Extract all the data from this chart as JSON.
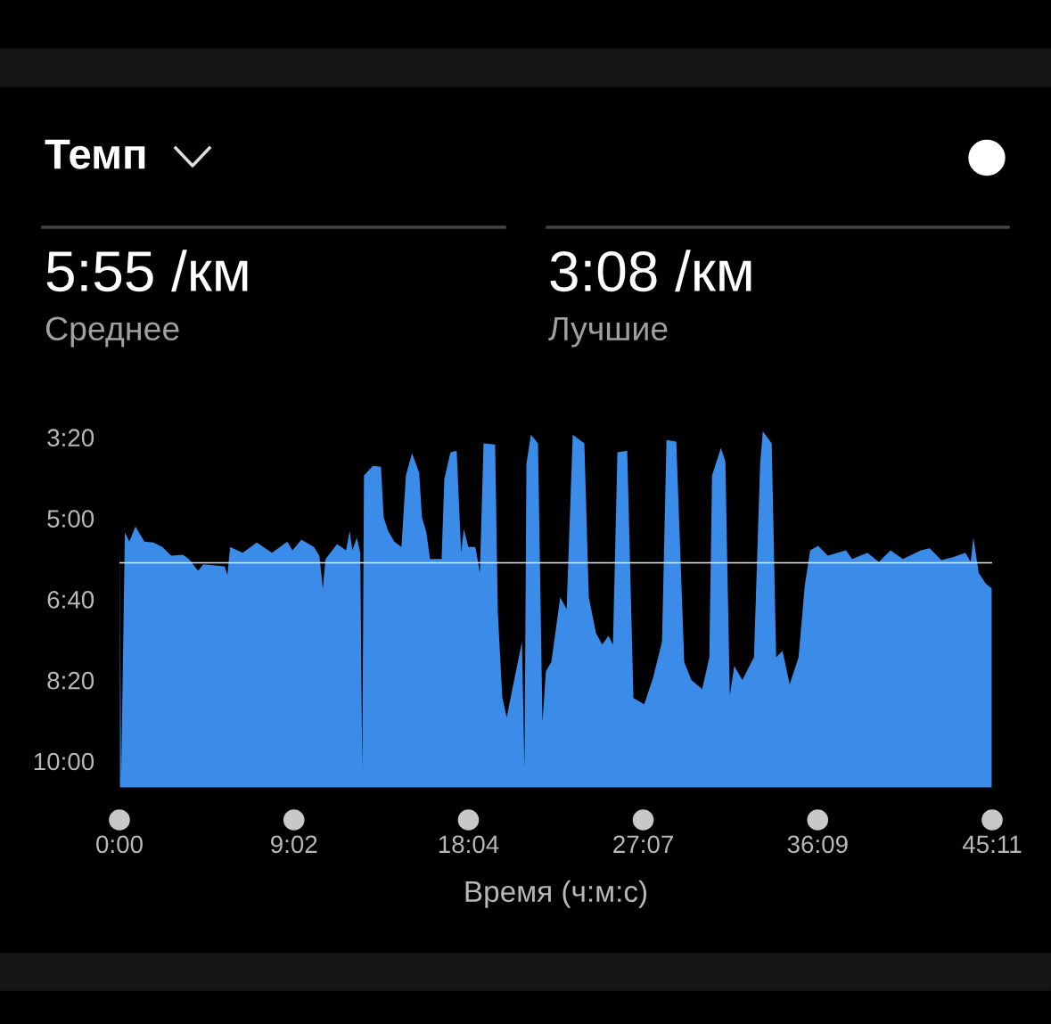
{
  "chart_data": {
    "type": "area",
    "title": "Темп",
    "xlabel": "Время (ч:м:с)",
    "annotations": [
      "5:55 /км",
      "Среднее",
      "3:08 /км",
      "Лучшие"
    ],
    "xlim": [
      0,
      45.183
    ],
    "ylim": [
      10.55,
      3.1
    ],
    "xticks": [
      {
        "value": 0,
        "label": "0:00"
      },
      {
        "value": 9.033,
        "label": "9:02"
      },
      {
        "value": 18.067,
        "label": "18:04"
      },
      {
        "value": 27.117,
        "label": "27:07"
      },
      {
        "value": 36.15,
        "label": "36:09"
      },
      {
        "value": 45.183,
        "label": "45:11"
      }
    ],
    "yticks": [
      {
        "value": 3.333,
        "label": "3:20"
      },
      {
        "value": 5,
        "label": "5:00"
      },
      {
        "value": 6.667,
        "label": "6:40"
      },
      {
        "value": 8.333,
        "label": "8:20"
      },
      {
        "value": 10,
        "label": "10:00"
      }
    ],
    "grid": false,
    "legend": false,
    "ref_lines": [
      {
        "axis": "y",
        "value": 5.917,
        "color": "#e8e8e8"
      }
    ],
    "x": [
      0,
      0.09,
      0.28,
      0.51,
      0.83,
      1.29,
      1.76,
      2.22,
      2.68,
      3.28,
      3.6,
      4.07,
      4.34,
      5.45,
      5.59,
      5.73,
      6.38,
      7.11,
      7.9,
      8.69,
      8.96,
      9.42,
      10.07,
      10.35,
      10.53,
      10.67,
      11.27,
      11.73,
      11.92,
      12.06,
      12.29,
      12.47,
      12.57,
      12.66,
      13.12,
      13.54,
      13.68,
      13.91,
      14.23,
      14.6,
      14.83,
      15.15,
      15.52,
      15.66,
      15.89,
      16.08,
      16.68,
      16.82,
      17.14,
      17.46,
      17.69,
      17.83,
      18.06,
      18.43,
      18.66,
      18.85,
      19.45,
      19.59,
      19.82,
      20.05,
      20.37,
      20.84,
      20.97,
      21.07,
      21.3,
      21.67,
      21.9,
      22.08,
      22.36,
      22.82,
      23.15,
      23.47,
      24.07,
      24.3,
      24.67,
      24.99,
      25.32,
      25.55,
      25.78,
      26.29,
      26.61,
      27.17,
      27.63,
      28.09,
      28.32,
      28.83,
      29.24,
      29.61,
      30.17,
      30.54,
      30.68,
      31.14,
      31.37,
      31.6,
      31.83,
      32.25,
      32.85,
      33.17,
      33.31,
      33.77,
      34.0,
      34.33,
      34.7,
      35.16,
      35.48,
      35.76,
      36.17,
      36.68,
      37.61,
      37.93,
      38.72,
      39.32,
      39.92,
      40.56,
      41.49,
      41.95,
      42.55,
      43.15,
      43.8,
      44.07,
      44.21,
      44.49,
      44.86,
      45.18
    ],
    "series": [
      {
        "color": "#3a8ce8",
        "values": [
          5.17,
          10.33,
          5.29,
          5.48,
          5.17,
          5.48,
          5.5,
          5.59,
          5.77,
          5.75,
          5.84,
          6.08,
          5.95,
          5.99,
          6.17,
          5.59,
          5.71,
          5.5,
          5.71,
          5.48,
          5.66,
          5.44,
          5.59,
          5.77,
          6.45,
          5.84,
          5.53,
          5.66,
          5.26,
          5.66,
          5.4,
          5.71,
          10.24,
          4.12,
          3.92,
          3.94,
          4.98,
          5.26,
          5.48,
          5.59,
          4.12,
          3.66,
          4.07,
          4.98,
          5.29,
          5.84,
          5.84,
          4.19,
          3.64,
          3.61,
          5.71,
          5.22,
          5.59,
          5.59,
          6.13,
          3.46,
          3.48,
          6.94,
          8.68,
          9.1,
          8.46,
          7.54,
          10.16,
          3.88,
          3.28,
          3.46,
          9.19,
          8.15,
          7.96,
          6.63,
          6.87,
          3.28,
          3.46,
          6.63,
          7.36,
          7.6,
          7.42,
          7.6,
          3.64,
          3.61,
          8.7,
          8.83,
          8.28,
          7.54,
          3.39,
          3.42,
          7.96,
          8.33,
          8.52,
          7.86,
          4.12,
          3.55,
          3.83,
          8.65,
          8.04,
          8.33,
          7.86,
          3.88,
          3.21,
          3.46,
          7.86,
          7.73,
          8.42,
          7.86,
          6.39,
          5.66,
          5.57,
          5.77,
          5.66,
          5.84,
          5.71,
          5.9,
          5.66,
          5.84,
          5.66,
          5.62,
          5.86,
          5.8,
          5.71,
          5.9,
          5.4,
          6.13,
          6.35,
          6.45
        ]
      }
    ]
  }
}
